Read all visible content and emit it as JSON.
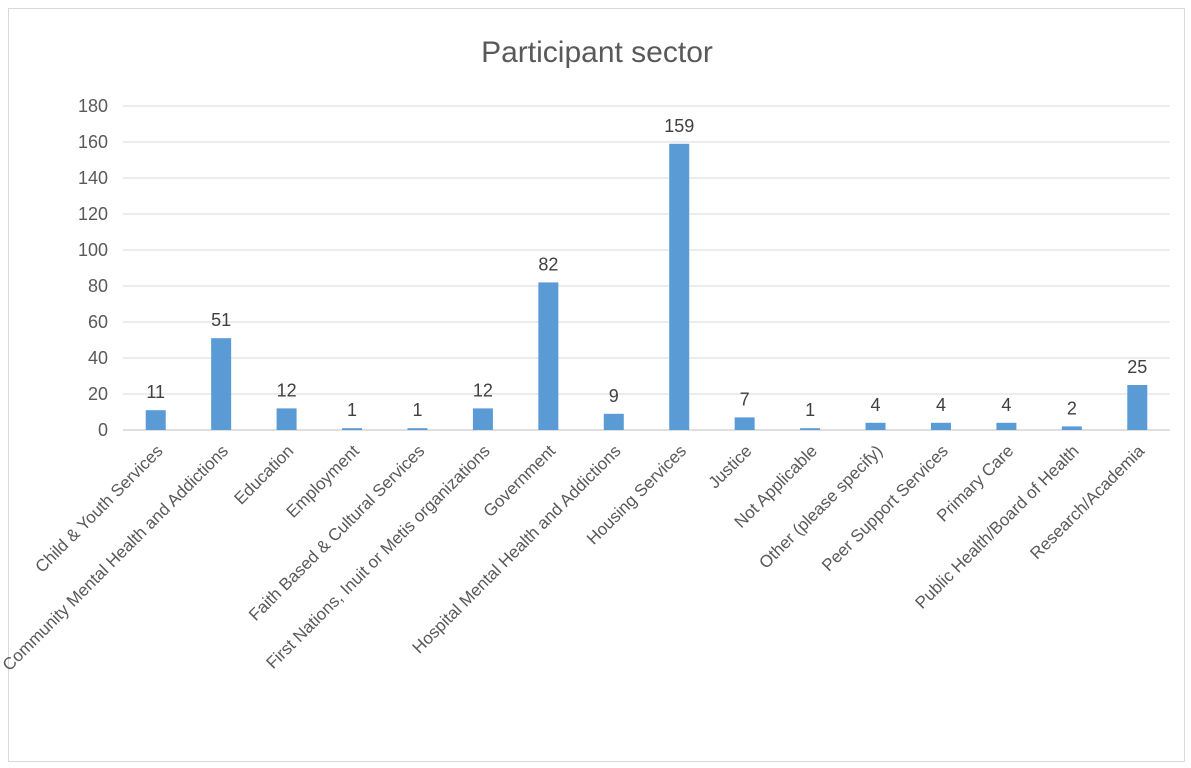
{
  "chart_data": {
    "type": "bar",
    "title": "Participant sector",
    "xlabel": "",
    "ylabel": "",
    "ylim": [
      0,
      180
    ],
    "yticks": [
      0,
      20,
      40,
      60,
      80,
      100,
      120,
      140,
      160,
      180
    ],
    "grid": true,
    "legend": "none",
    "bar_color": "#5b9bd5",
    "categories": [
      "Child & Youth Services",
      "Community Mental Health and Addictions",
      "Education",
      "Employment",
      "Faith Based & Cultural Services",
      "First Nations, Inuit or Metis organizations",
      "Government",
      "Hospital Mental Health and Addictions",
      "Housing Services",
      "Justice",
      "Not Applicable",
      "Other (please specify)",
      "Peer Support Services",
      "Primary Care",
      "Public Health/Board of Health",
      "Research/Academia"
    ],
    "values": [
      11,
      51,
      12,
      1,
      1,
      12,
      82,
      9,
      159,
      7,
      1,
      4,
      4,
      4,
      2,
      25
    ]
  }
}
